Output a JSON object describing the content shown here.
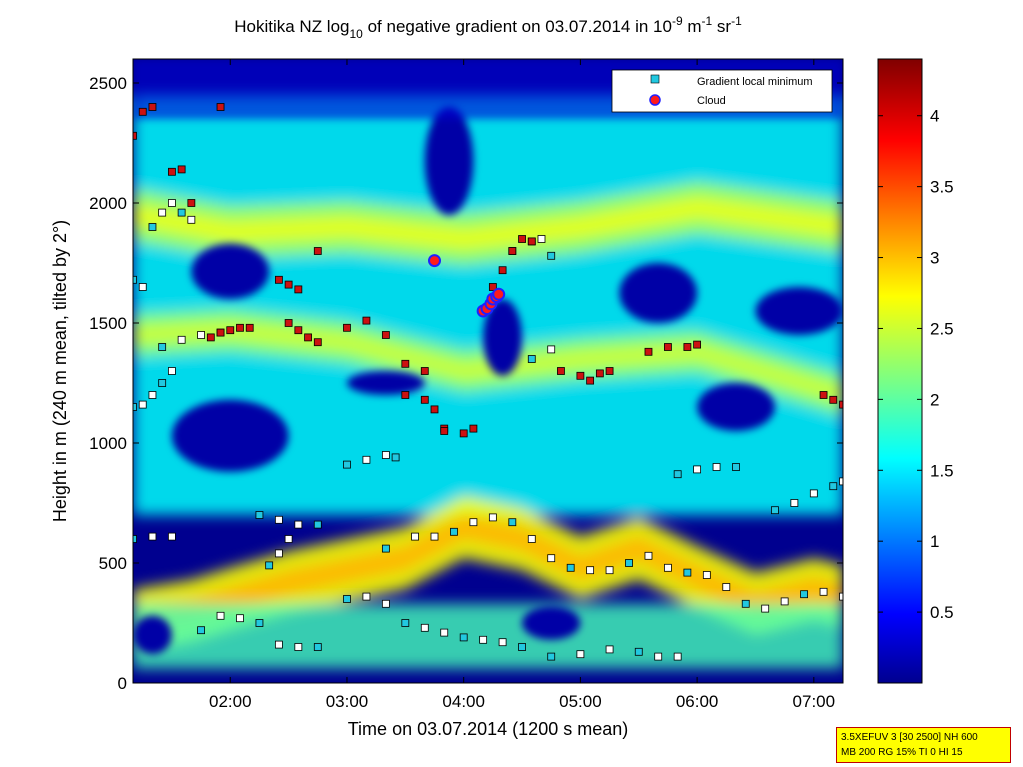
{
  "title": "Hokitika NZ log",
  "title_sub": "10",
  "title_rest": " of negative gradient on 03.07.2014 in 10",
  "title_exp1": "-9",
  "title_unit1": " m",
  "title_exp2": "-1",
  "title_unit2": " sr",
  "title_exp3": "-1",
  "info_line1": "3.5XEFUV 3 [30 2500] NH 600",
  "info_line2": "MB 200 RG 15% TI 0 HI 15",
  "colors": {
    "background": "#00008f",
    "marker_min_fill": "#ffffff",
    "marker_low_fill": "#22c8e0",
    "marker_high_fill": "#cc1111",
    "cloud_fill": "#ff1a1a",
    "cloud_edge": "#2020ff"
  },
  "chart_data": {
    "type": "heatmap",
    "xlabel": "Time on 03.07.2014 (1200 s mean)",
    "ylabel": "Height in m (240 m mean, tilted by 2°)",
    "xlim": [
      "01:10",
      "07:15"
    ],
    "ylim": [
      0,
      2600
    ],
    "x_ticks": [
      "02:00",
      "03:00",
      "04:00",
      "05:00",
      "06:00",
      "07:00"
    ],
    "y_ticks": [
      "0",
      "500",
      "1000",
      "1500",
      "2000",
      "2500"
    ],
    "colorbar": {
      "range": [
        0,
        4.4
      ],
      "ticks": [
        "0.5",
        "1",
        "1.5",
        "2",
        "2.5",
        "3",
        "3.5",
        "4"
      ],
      "colormap": "jet"
    },
    "legend": {
      "position": "top-right",
      "entries": [
        "Gradient local minimum",
        "Cloud"
      ]
    },
    "layers": [
      {
        "name": "surface layer",
        "level": 2.7,
        "points": [
          [
            "01:10",
            260
          ],
          [
            "01:40",
            300
          ],
          [
            "02:00",
            350
          ],
          [
            "02:30",
            420
          ],
          [
            "03:00",
            470
          ],
          [
            "03:30",
            520
          ],
          [
            "04:00",
            650
          ],
          [
            "04:30",
            600
          ],
          [
            "05:00",
            480
          ],
          [
            "05:30",
            560
          ],
          [
            "06:00",
            440
          ],
          [
            "06:30",
            330
          ],
          [
            "07:00",
            390
          ],
          [
            "07:15",
            360
          ]
        ],
        "thickness": 260
      },
      {
        "name": "upper band",
        "level": 2.3,
        "points": [
          [
            "01:10",
            1950
          ],
          [
            "02:00",
            1880
          ],
          [
            "03:00",
            1900
          ],
          [
            "04:00",
            1850
          ],
          [
            "05:00",
            1900
          ],
          [
            "06:00",
            1980
          ],
          [
            "07:15",
            1900
          ]
        ],
        "thickness": 220
      },
      {
        "name": "middle band",
        "level": 2.2,
        "points": [
          [
            "01:10",
            1450
          ],
          [
            "02:00",
            1470
          ],
          [
            "03:00",
            1420
          ],
          [
            "04:00",
            1300
          ],
          [
            "05:00",
            1350
          ],
          [
            "06:00",
            1380
          ],
          [
            "07:15",
            1200
          ]
        ],
        "thickness": 180
      }
    ],
    "clear_regions": [
      {
        "x": [
          "01:40",
          "02:20"
        ],
        "y": [
          1600,
          1830
        ]
      },
      {
        "x": [
          "01:30",
          "02:30"
        ],
        "y": [
          880,
          1180
        ]
      },
      {
        "x": [
          "03:00",
          "03:40"
        ],
        "y": [
          1200,
          1300
        ]
      },
      {
        "x": [
          "03:40",
          "04:05"
        ],
        "y": [
          1950,
          2400
        ]
      },
      {
        "x": [
          "04:10",
          "04:30"
        ],
        "y": [
          1280,
          1600
        ]
      },
      {
        "x": [
          "05:20",
          "06:00"
        ],
        "y": [
          1500,
          1750
        ]
      },
      {
        "x": [
          "06:00",
          "06:40"
        ],
        "y": [
          1050,
          1250
        ]
      },
      {
        "x": [
          "04:30",
          "05:00"
        ],
        "y": [
          180,
          320
        ]
      },
      {
        "x": [
          "01:10",
          "01:30"
        ],
        "y": [
          120,
          280
        ]
      },
      {
        "x": [
          "06:30",
          "07:15"
        ],
        "y": [
          1450,
          1650
        ]
      }
    ],
    "series": [
      {
        "name": "Gradient local minimum",
        "marker": "square",
        "tracks": [
          {
            "x": [
              "03:20",
              "03:35",
              "03:45",
              "03:55",
              "04:05",
              "04:15",
              "04:25",
              "04:35",
              "04:45",
              "04:55",
              "05:05",
              "05:15",
              "05:25",
              "05:35",
              "05:45",
              "05:55",
              "06:05",
              "06:15",
              "06:25",
              "06:35",
              "06:45",
              "06:55",
              "07:05",
              "07:15"
            ],
            "y": [
              560,
              610,
              610,
              630,
              670,
              690,
              670,
              600,
              520,
              480,
              470,
              470,
              500,
              530,
              480,
              460,
              450,
              400,
              330,
              310,
              340,
              370,
              380,
              360
            ]
          },
          {
            "x": [
              "03:00",
              "03:10",
              "03:20",
              "03:30",
              "03:40",
              "03:50",
              "04:00",
              "04:10",
              "04:20",
              "04:30"
            ],
            "y": [
              350,
              360,
              330,
              250,
              230,
              210,
              190,
              180,
              170,
              150
            ]
          },
          {
            "x": [
              "04:45",
              "05:00",
              "05:15",
              "05:30",
              "05:40",
              "05:50"
            ],
            "y": [
              110,
              120,
              140,
              130,
              110,
              110
            ]
          },
          {
            "x": [
              "01:45",
              "01:55",
              "02:05",
              "02:15",
              "02:25",
              "02:35",
              "02:45"
            ],
            "y": [
              220,
              280,
              270,
              250,
              160,
              150,
              150
            ]
          },
          {
            "x": [
              "01:10",
              "01:20",
              "01:30"
            ],
            "y": [
              600,
              610,
              610
            ]
          },
          {
            "x": [
              "01:25",
              "01:35",
              "01:45",
              "01:55"
            ],
            "y": [
              1400,
              1430,
              1450,
              1460
            ]
          },
          {
            "x": [
              "01:10",
              "01:15",
              "01:20",
              "01:25",
              "01:30"
            ],
            "y": [
              1150,
              1160,
              1200,
              1250,
              1300
            ]
          },
          {
            "x": [
              "01:20",
              "01:25",
              "01:30",
              "01:35",
              "01:40"
            ],
            "y": [
              1900,
              1960,
              2000,
              1960,
              1930
            ]
          },
          {
            "x": [
              "01:10",
              "01:15"
            ],
            "y": [
              1680,
              1650
            ]
          },
          {
            "x": [
              "02:15",
              "02:25",
              "02:35",
              "02:45"
            ],
            "y": [
              700,
              680,
              660,
              660
            ]
          },
          {
            "x": [
              "02:20",
              "02:25",
              "02:30"
            ],
            "y": [
              490,
              540,
              600
            ]
          },
          {
            "x": [
              "03:00",
              "03:10",
              "03:20",
              "03:25"
            ],
            "y": [
              910,
              930,
              950,
              940
            ]
          },
          {
            "x": [
              "05:50",
              "06:00",
              "06:10",
              "06:20"
            ],
            "y": [
              870,
              890,
              900,
              900
            ]
          },
          {
            "x": [
              "06:40",
              "06:50",
              "07:00",
              "07:10",
              "07:15"
            ],
            "y": [
              720,
              750,
              790,
              820,
              840
            ]
          },
          {
            "x": [
              "04:25",
              "04:35",
              "04:40",
              "04:45"
            ],
            "y": [
              1800,
              1840,
              1850,
              1780
            ]
          },
          {
            "x": [
              "04:35",
              "04:45"
            ],
            "y": [
              1350,
              1390
            ]
          }
        ]
      },
      {
        "name": "Gradient local minimum (high)",
        "marker": "square",
        "tracks": [
          {
            "x": [
              "01:50",
              "01:55",
              "02:00",
              "02:05",
              "02:10"
            ],
            "y": [
              1440,
              1460,
              1470,
              1480,
              1480
            ]
          },
          {
            "x": [
              "02:30",
              "02:35",
              "02:40",
              "02:45"
            ],
            "y": [
              1500,
              1470,
              1440,
              1420
            ]
          },
          {
            "x": [
              "02:25",
              "02:30",
              "02:35"
            ],
            "y": [
              1680,
              1660,
              1640
            ]
          },
          {
            "x": [
              "03:30",
              "03:40",
              "03:45",
              "03:50"
            ],
            "y": [
              1200,
              1180,
              1140,
              1060
            ]
          },
          {
            "x": [
              "03:50",
              "04:00",
              "04:05"
            ],
            "y": [
              1050,
              1040,
              1060
            ]
          },
          {
            "x": [
              "04:15",
              "04:20",
              "04:25",
              "04:30",
              "04:35"
            ],
            "y": [
              1650,
              1720,
              1800,
              1850,
              1840
            ]
          },
          {
            "x": [
              "04:50",
              "05:00",
              "05:05",
              "05:10",
              "05:15"
            ],
            "y": [
              1300,
              1280,
              1260,
              1290,
              1300
            ]
          },
          {
            "x": [
              "05:35",
              "05:45",
              "05:55",
              "06:00"
            ],
            "y": [
              1380,
              1400,
              1400,
              1410
            ]
          },
          {
            "x": [
              "07:05",
              "07:10",
              "07:15"
            ],
            "y": [
              1200,
              1180,
              1160
            ]
          },
          {
            "x": [
              "01:10",
              "01:15",
              "01:20"
            ],
            "y": [
              2280,
              2380,
              2400
            ]
          },
          {
            "x": [
              "01:30",
              "01:35",
              "01:40"
            ],
            "y": [
              2130,
              2140,
              2000
            ]
          },
          {
            "x": [
              "01:55"
            ],
            "y": [
              2400
            ]
          },
          {
            "x": [
              "02:45"
            ],
            "y": [
              1800
            ]
          },
          {
            "x": [
              "03:00",
              "03:10",
              "03:20"
            ],
            "y": [
              1480,
              1510,
              1450
            ]
          },
          {
            "x": [
              "03:30",
              "03:40"
            ],
            "y": [
              1330,
              1300
            ]
          }
        ]
      },
      {
        "name": "Cloud",
        "marker": "circle",
        "tracks": [
          {
            "x": [
              "03:45"
            ],
            "y": [
              1760
            ]
          },
          {
            "x": [
              "04:10",
              "04:12",
              "04:14",
              "04:15",
              "04:17",
              "04:18"
            ],
            "y": [
              1550,
              1560,
              1580,
              1600,
              1610,
              1620
            ]
          }
        ]
      }
    ]
  }
}
